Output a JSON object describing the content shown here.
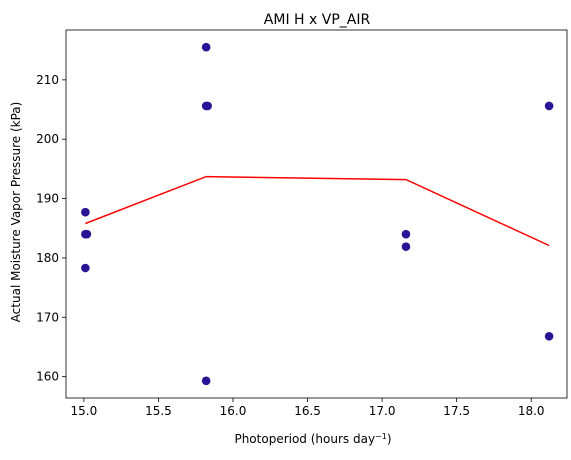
{
  "chart_data": {
    "type": "scatter",
    "title": "AMI H x VP_AIR",
    "xlabel": "Photoperiod (hours day",
    "xlabel_sup": "−1",
    "xlabel_suffix": ")",
    "ylabel": "Actual Moisture Vapor Pressure (kPa)",
    "xlim": [
      14.88,
      18.24
    ],
    "ylim": [
      156.4,
      218.4
    ],
    "xticks": [
      "15.0",
      "15.5",
      "16.0",
      "16.5",
      "17.0",
      "17.5",
      "18.0"
    ],
    "yticks": [
      "160",
      "170",
      "180",
      "190",
      "200",
      "210"
    ],
    "grid": false,
    "series": [
      {
        "marker_color": "#2a1496",
        "points": [
          {
            "x": 15.01,
            "y": 187.7
          },
          {
            "x": 15.01,
            "y": 184.0
          },
          {
            "x": 15.02,
            "y": 184.0
          },
          {
            "x": 15.01,
            "y": 178.3
          },
          {
            "x": 15.82,
            "y": 215.5
          },
          {
            "x": 15.82,
            "y": 205.6
          },
          {
            "x": 15.83,
            "y": 205.6
          },
          {
            "x": 15.82,
            "y": 159.3
          },
          {
            "x": 17.16,
            "y": 184.0
          },
          {
            "x": 17.16,
            "y": 181.9
          },
          {
            "x": 18.12,
            "y": 205.6
          },
          {
            "x": 18.12,
            "y": 166.8
          }
        ]
      },
      {
        "line_color": "#ff0000",
        "line": [
          {
            "x": 15.01,
            "y": 185.8
          },
          {
            "x": 15.82,
            "y": 193.7
          },
          {
            "x": 17.16,
            "y": 193.2
          },
          {
            "x": 18.12,
            "y": 182.1
          }
        ]
      }
    ]
  }
}
